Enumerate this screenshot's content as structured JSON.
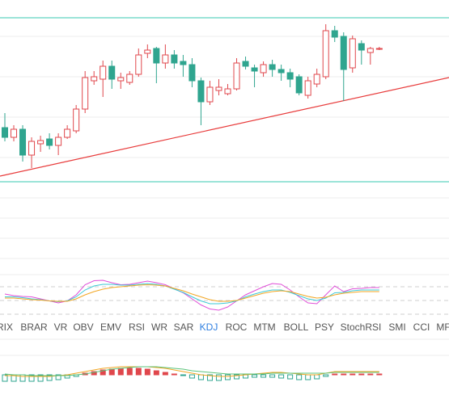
{
  "chart_data": [
    {
      "type": "candlestick",
      "ylim": [
        0,
        240
      ],
      "up_color": "#e0474c",
      "down_color": "#2fa58f",
      "channel": {
        "values": [
          218,
          15
        ],
        "color": "#5fd3c0"
      },
      "trendline": {
        "values": [
          22,
          144
        ],
        "color": "#e83b3b"
      },
      "open": [
        82,
        70,
        80,
        48,
        62,
        68,
        60,
        70,
        78,
        105,
        140,
        142,
        158,
        140,
        138,
        148,
        174,
        180,
        162,
        172,
        164,
        160,
        140,
        114,
        128,
        124,
        130,
        164,
        156,
        150,
        160,
        154,
        150,
        145,
        122,
        136,
        145,
        202,
        195,
        156,
        186,
        175,
        180
      ],
      "high": [
        100,
        85,
        85,
        70,
        72,
        75,
        75,
        85,
        110,
        152,
        152,
        165,
        165,
        150,
        152,
        180,
        185,
        182,
        185,
        178,
        172,
        168,
        144,
        140,
        142,
        136,
        168,
        170,
        160,
        164,
        166,
        160,
        155,
        148,
        145,
        155,
        210,
        208,
        200,
        196,
        190,
        182,
        182
      ],
      "low": [
        65,
        65,
        40,
        32,
        52,
        55,
        48,
        68,
        75,
        100,
        135,
        120,
        130,
        130,
        135,
        145,
        168,
        137,
        155,
        155,
        145,
        132,
        85,
        110,
        122,
        122,
        128,
        154,
        132,
        145,
        145,
        140,
        132,
        122,
        118,
        132,
        142,
        188,
        115,
        150,
        160,
        160,
        178
      ],
      "close": [
        70,
        80,
        48,
        65,
        66,
        60,
        70,
        80,
        105,
        144,
        145,
        158,
        142,
        144,
        148,
        172,
        178,
        162,
        172,
        162,
        160,
        140,
        114,
        132,
        132,
        130,
        162,
        158,
        152,
        160,
        154,
        150,
        142,
        125,
        140,
        148,
        202,
        194,
        154,
        192,
        178,
        180,
        180
      ]
    },
    {
      "type": "line",
      "ylim": [
        0,
        100
      ],
      "series": [
        {
          "color": "#e04fd8",
          "values": [
            62,
            58,
            56,
            55,
            50,
            45,
            40,
            45,
            60,
            85,
            95,
            96,
            90,
            85,
            86,
            90,
            94,
            90,
            85,
            75,
            65,
            50,
            35,
            25,
            22,
            30,
            45,
            60,
            70,
            80,
            88,
            86,
            72,
            55,
            40,
            38,
            60,
            82,
            68,
            75,
            76,
            78,
            78
          ]
        },
        {
          "color": "#3ec9d6",
          "values": [
            55,
            55,
            53,
            50,
            48,
            45,
            43,
            45,
            55,
            72,
            82,
            86,
            86,
            84,
            84,
            86,
            88,
            86,
            82,
            74,
            66,
            55,
            45,
            38,
            38,
            40,
            45,
            55,
            62,
            68,
            72,
            72,
            66,
            58,
            50,
            46,
            52,
            65,
            66,
            70,
            72,
            72,
            72
          ]
        },
        {
          "color": "#f2a623",
          "values": [
            52,
            52,
            50,
            48,
            47,
            45,
            44,
            44,
            50,
            60,
            68,
            74,
            78,
            80,
            82,
            84,
            85,
            84,
            82,
            76,
            70,
            62,
            55,
            48,
            44,
            44,
            46,
            52,
            58,
            64,
            68,
            70,
            68,
            62,
            56,
            52,
            54,
            60,
            64,
            66,
            68,
            68,
            68
          ]
        }
      ]
    },
    {
      "type": "histogram-line",
      "ylim": [
        -12,
        12
      ],
      "up_color": "#e0474c",
      "down_color": "#2fa58f",
      "values": [
        -8,
        -8,
        -8,
        -8,
        -8,
        -7,
        -6,
        -4,
        -2,
        2,
        4,
        6,
        7,
        8,
        8,
        8,
        7,
        5,
        3,
        1,
        -1,
        -4,
        -6,
        -7,
        -7,
        -6,
        -5,
        -4,
        -3,
        -3,
        -3,
        -4,
        -5,
        -6,
        -6,
        -5,
        -2,
        1,
        1,
        1,
        1,
        1,
        1
      ],
      "series": [
        {
          "color": "#f2a623",
          "values": [
            -1,
            -1,
            -2,
            -2,
            -2,
            -2,
            -1,
            0,
            2,
            4,
            6,
            8,
            9,
            10,
            10,
            10,
            10,
            9,
            8,
            6,
            4,
            2,
            0,
            -1,
            -2,
            -2,
            -1,
            0,
            1,
            2,
            3,
            3,
            2,
            1,
            0,
            0,
            2,
            4,
            4,
            4,
            4,
            4,
            4
          ]
        },
        {
          "color": "#5cc47c",
          "values": [
            1,
            0,
            0,
            -1,
            -1,
            -1,
            -1,
            -1,
            0,
            1,
            3,
            5,
            7,
            8,
            9,
            10,
            10,
            10,
            9,
            8,
            7,
            5,
            4,
            3,
            2,
            1,
            1,
            1,
            1,
            1,
            2,
            2,
            2,
            2,
            2,
            2,
            2,
            3,
            3,
            3,
            3,
            3,
            3
          ]
        }
      ]
    }
  ],
  "tabs": {
    "items": [
      "RIX",
      "BRAR",
      "VR",
      "OBV",
      "EMV",
      "RSI",
      "WR",
      "SAR",
      "KDJ",
      "ROC",
      "MTM",
      "BOLL",
      "PSY",
      "StochRSI",
      "SMI",
      "CCI",
      "MF"
    ],
    "active": 8,
    "active_color": "#2f7fe0"
  }
}
